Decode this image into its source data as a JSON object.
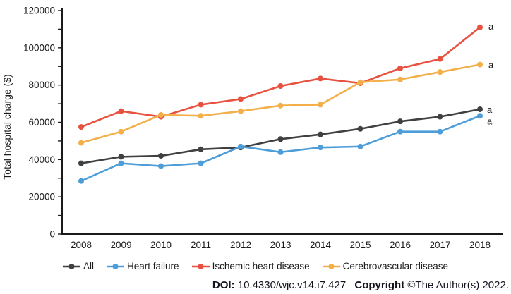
{
  "chart_data": {
    "type": "line",
    "title": "",
    "xlabel": "",
    "ylabel": "Total hospital charge ($)",
    "ylim": [
      0,
      120000
    ],
    "ytick_step": 20000,
    "minor_ytick_step": 10000,
    "grid": false,
    "legend_position": "bottom",
    "categories": [
      "2008",
      "2009",
      "2010",
      "2011",
      "2012",
      "2013",
      "2014",
      "2015",
      "2016",
      "2017",
      "2018"
    ],
    "series": [
      {
        "name": "All",
        "color": "#404040",
        "values": [
          38000,
          41500,
          42000,
          45500,
          46500,
          51000,
          53500,
          56500,
          60500,
          63000,
          67000
        ],
        "annotation": "a"
      },
      {
        "name": "Heart failure",
        "color": "#4D9DD8",
        "values": [
          28500,
          38000,
          36500,
          38000,
          47000,
          44000,
          46500,
          47000,
          55000,
          55000,
          63500
        ],
        "annotation": "a"
      },
      {
        "name": "Ischemic heart disease",
        "color": "#E8513F",
        "values": [
          57500,
          66000,
          63000,
          69500,
          72500,
          79500,
          83500,
          81000,
          89000,
          94000,
          111000
        ],
        "annotation": "a"
      },
      {
        "name": "Cerebrovascular disease",
        "color": "#F2AF4A",
        "values": [
          49000,
          55000,
          64000,
          63500,
          66000,
          69000,
          69500,
          81500,
          83000,
          87000,
          91000
        ],
        "annotation": "a"
      }
    ]
  },
  "footer": {
    "doi_label": "DOI:",
    "doi_value": "10.4330/wjc.v14.i7.427",
    "copyright_label": "Copyright",
    "copyright_value": "©The Author(s) 2022."
  }
}
